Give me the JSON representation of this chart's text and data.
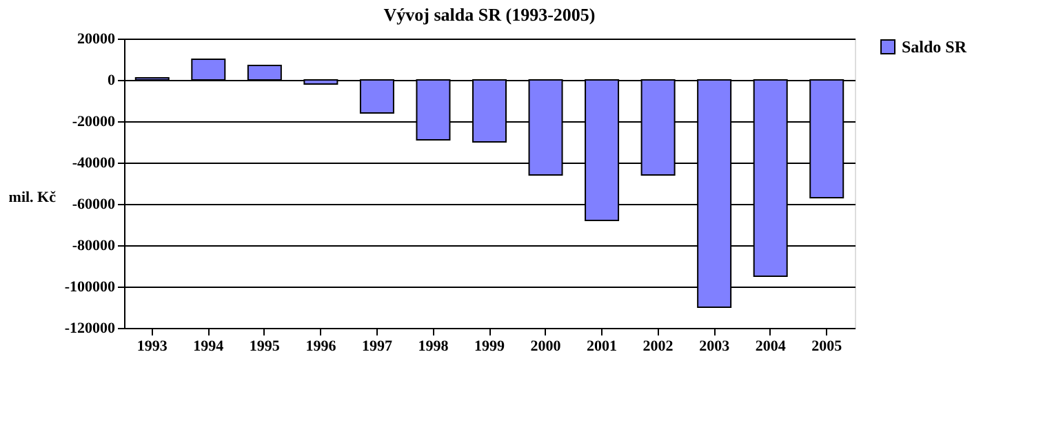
{
  "chart_data": {
    "type": "bar",
    "title": "Vývoj salda SR (1993-2005)",
    "ylabel": "mil. Kč",
    "categories": [
      "1993",
      "1994",
      "1995",
      "1996",
      "1997",
      "1998",
      "1999",
      "2000",
      "2001",
      "2002",
      "2003",
      "2004",
      "2005"
    ],
    "series": [
      {
        "name": "Saldo SR",
        "color": "#8080ff",
        "values": [
          1000,
          10000,
          7000,
          -2000,
          -16000,
          -29000,
          -30000,
          -46000,
          -68000,
          -46000,
          -110000,
          -95000,
          -57000
        ]
      }
    ],
    "ylim": [
      -120000,
      20000
    ],
    "yticks": [
      -120000,
      -100000,
      -80000,
      -60000,
      -40000,
      -20000,
      0,
      20000
    ],
    "grid": "y",
    "legend": "right"
  }
}
